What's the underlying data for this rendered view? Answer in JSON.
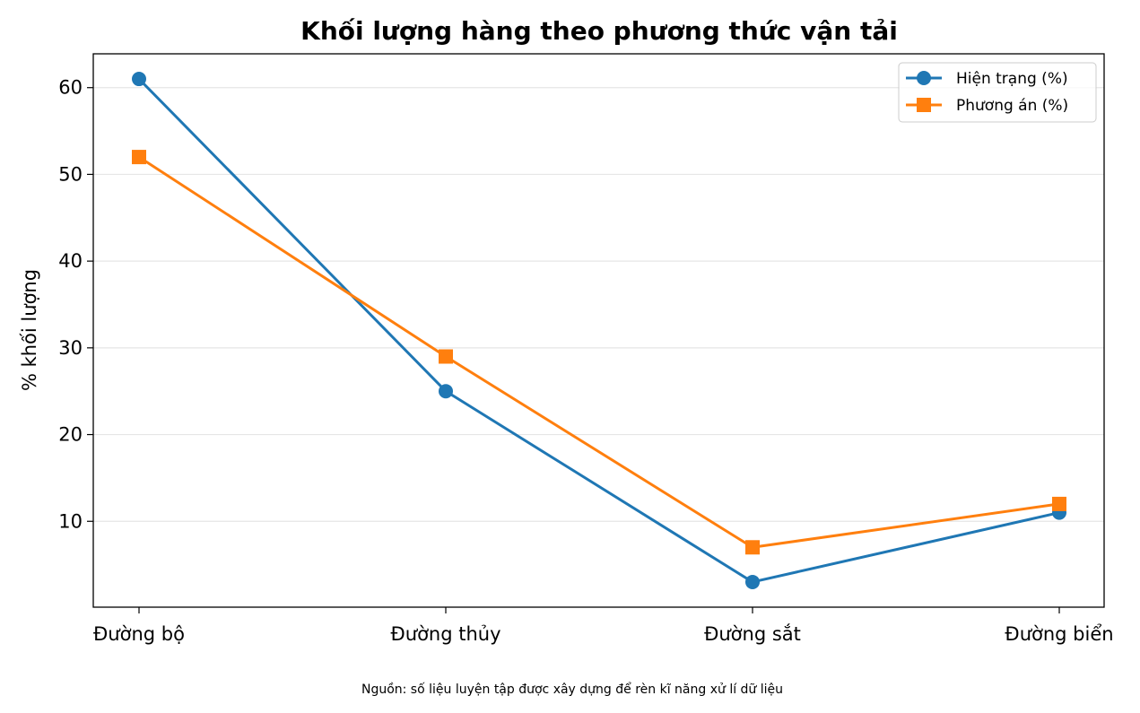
{
  "chart_data": {
    "type": "line",
    "title": "Khối lượng hàng theo phương thức vận tải",
    "xlabel": "",
    "ylabel": "% khối lượng",
    "categories": [
      "Đường bộ",
      "Đường thủy",
      "Đường sắt",
      "Đường biển"
    ],
    "series": [
      {
        "name": "Hiện trạng (%)",
        "values": [
          61,
          25,
          3,
          11
        ],
        "color": "#1f77b4",
        "marker": "circle"
      },
      {
        "name": "Phương án (%)",
        "values": [
          52,
          29,
          7,
          12
        ],
        "color": "#ff7f0e",
        "marker": "square"
      }
    ],
    "ylim": [
      0.1,
      63.9
    ],
    "yticks": [
      10,
      20,
      30,
      40,
      50,
      60
    ],
    "grid": "horizontal",
    "legend": "top-right",
    "source": "Nguồn: số liệu luyện tập được xây dựng để rèn kĩ năng xử lí dữ liệu"
  }
}
